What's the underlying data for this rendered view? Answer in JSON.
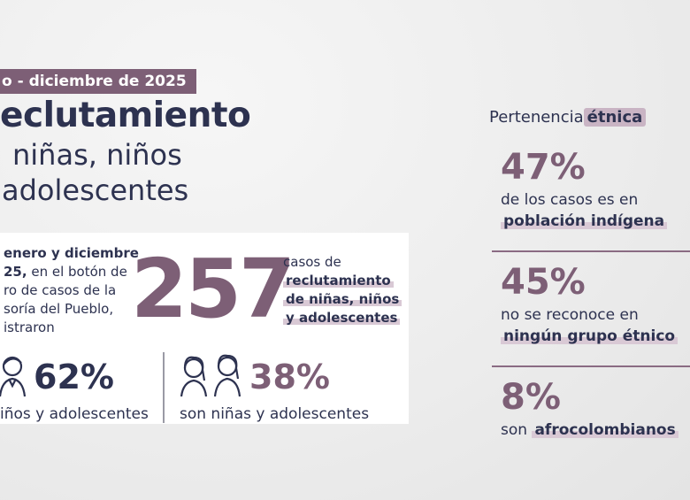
{
  "header": {
    "date_badge": "o - diciembre de 2025",
    "title_lines": [
      "eclutamiento",
      "niñas, niños",
      "adolescentes"
    ]
  },
  "summary": {
    "intro_lines": [
      "enero y diciembre",
      "25,",
      "en el botón de",
      "ro de casos de la",
      "soría del Pueblo,",
      "istraron"
    ],
    "total": "257",
    "caption_lines": [
      "casos de",
      "reclutamiento",
      "de niñas, niños",
      "y adolescentes"
    ],
    "stats": [
      {
        "value": "62%",
        "label": "iños y adolescentes"
      },
      {
        "value": "38%",
        "label": "son niñas y adolescentes"
      }
    ]
  },
  "ethnic": {
    "heading": "Pertenencia",
    "heading_highlight": "étnica",
    "items": [
      {
        "value": "47%",
        "text": "de los casos es en",
        "highlight": "población indígena"
      },
      {
        "value": "45%",
        "text": "no se reconoce en",
        "highlight": "ningún grupo étnico"
      },
      {
        "value": "8%",
        "text": "son",
        "highlight": "afrocolombianos"
      }
    ]
  }
}
